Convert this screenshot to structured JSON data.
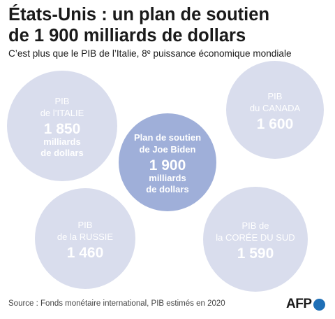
{
  "chart_data": {
    "type": "bubble",
    "title_line1": "États-Unis : un plan de soutien",
    "title_line2": "de 1 900 milliards de dollars",
    "subtitle_main": "C’est plus que le PIB de l’Italie, 8",
    "subtitle_sup": "e",
    "subtitle_rest": " puissance économique mondiale",
    "unit": "milliards de dollars",
    "bubbles": [
      {
        "id": "italie",
        "label_lines": [
          "PIB",
          "de l’ITALIE"
        ],
        "value": 1850,
        "value_text": "1 850",
        "unit_lines": [
          "milliards",
          "de dollars"
        ]
      },
      {
        "id": "canada",
        "label_lines": [
          "PIB",
          "du CANADA"
        ],
        "value": 1600,
        "value_text": "1 600",
        "unit_lines": []
      },
      {
        "id": "biden",
        "label_lines": [
          "Plan de soutien",
          "de Joe Biden"
        ],
        "value": 1900,
        "value_text": "1 900",
        "unit_lines": [
          "milliards",
          "de dollars"
        ]
      },
      {
        "id": "russie",
        "label_lines": [
          "PIB",
          "de la RUSSIE"
        ],
        "value": 1460,
        "value_text": "1 460",
        "unit_lines": []
      },
      {
        "id": "coree",
        "label_lines": [
          "PIB de",
          "la CORÉE DU SUD"
        ],
        "value": 1590,
        "value_text": "1 590",
        "unit_lines": []
      }
    ]
  },
  "source": "Source : Fonds monétaire international, PIB estimés en 2020",
  "logo": {
    "text": "AFP",
    "icon": "afp-dot-icon"
  },
  "colors": {
    "bubble": "#d9dded",
    "highlight": "#9fafd9",
    "bubble_text": "#ffffff",
    "logo_dot": "#1f6fb6"
  }
}
